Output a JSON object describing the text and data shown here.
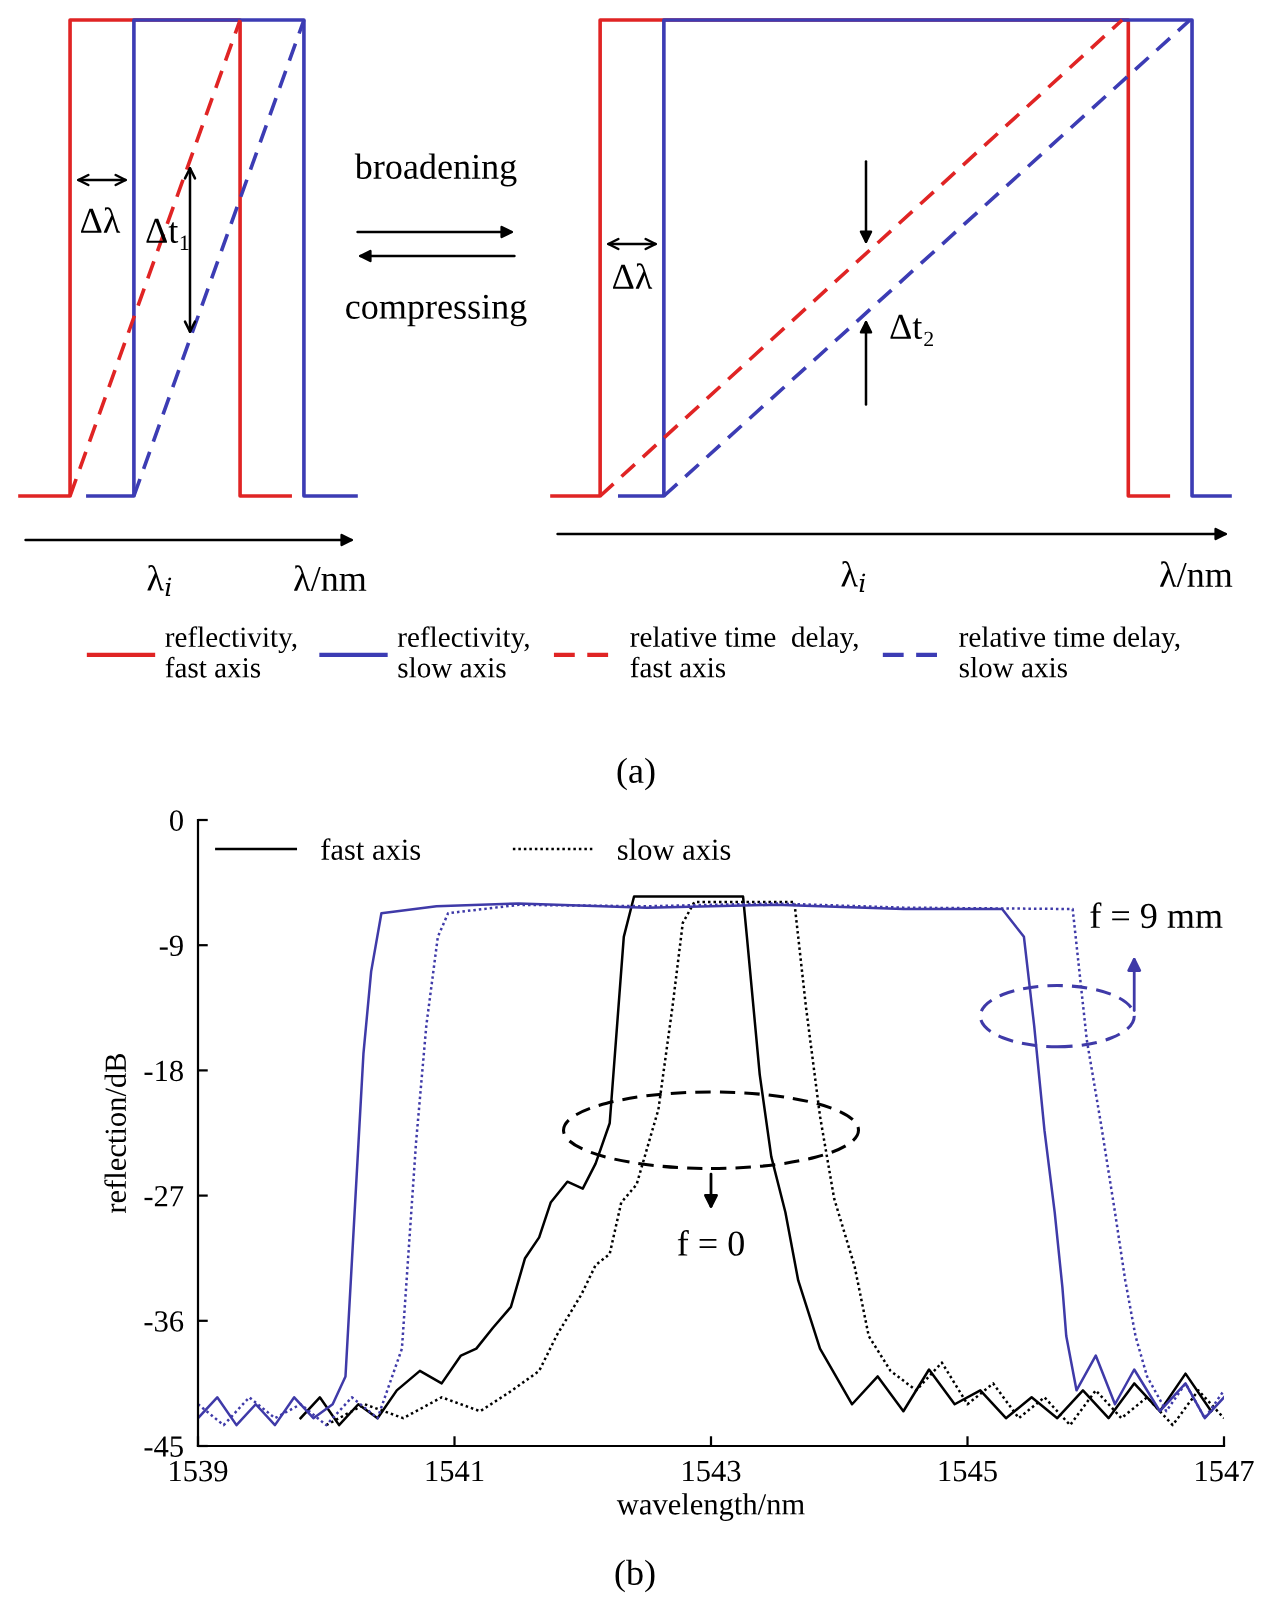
{
  "chart_data": [
    {
      "type": "other",
      "legend": "bottom",
      "series": [
        {
          "name": "reflectivity,\nfast axis",
          "color": "#e02424",
          "line_style": "solid"
        },
        {
          "name": "reflectivity,\nslow axis",
          "color": "#3c3cb4",
          "line_style": "solid"
        },
        {
          "name": "relative time  delay,\nfast axis",
          "color": "#e02424",
          "line_style": "dashed"
        },
        {
          "name": "relative time delay,\nslow axis",
          "color": "#3c3cb4",
          "line_style": "dashed"
        }
      ],
      "annotations": [
        "Δλ",
        "Δt₁",
        "λ$_{i}$",
        "λ/nm",
        "broadening",
        "compressing",
        "Δλ",
        "Δt₂",
        "λ$_{i}$",
        "λ/nm",
        "(a)"
      ]
    },
    {
      "type": "line",
      "xlabel": "wavelength/nm",
      "ylabel": "reflection/dB",
      "legend": "top left",
      "xlim": [
        1539,
        1547
      ],
      "xticks": [
        1539,
        1541,
        1543,
        1545,
        1547
      ],
      "ylim": [
        -45,
        0
      ],
      "yticks": [
        0,
        -9,
        -18,
        -27,
        -36,
        -45
      ],
      "series": [
        {
          "name": "fast axis",
          "color": "#000000",
          "line_style": "solid",
          "x": [
            1539.8,
            1539.95,
            1540.1,
            1540.25,
            1540.4,
            1540.55,
            1540.73,
            1540.9,
            1541.05,
            1541.17,
            1541.3,
            1541.44,
            1541.55,
            1541.66,
            1541.75,
            1541.88,
            1542.0,
            1542.1,
            1542.21,
            1542.32,
            1542.4,
            1543.25,
            1543.28,
            1543.38,
            1543.47,
            1543.58,
            1543.68,
            1543.85,
            1543.95,
            1544.1,
            1544.3,
            1544.5,
            1544.7,
            1544.9,
            1545.1,
            1545.3,
            1545.5,
            1545.7,
            1545.9,
            1546.1,
            1546.3,
            1546.5,
            1546.7,
            1546.9
          ],
          "values": [
            -43,
            -41.5,
            -43.5,
            -42,
            -43,
            -41,
            -39.6,
            -40.5,
            -38.5,
            -38,
            -36.5,
            -35,
            -31.5,
            -30,
            -27.5,
            -26,
            -26.5,
            -24.7,
            -21.8,
            -8.4,
            -5.5,
            -5.5,
            -8.4,
            -18.3,
            -24.2,
            -28.2,
            -33.1,
            -38,
            -39.6,
            -42,
            -40,
            -42.5,
            -39.5,
            -42,
            -41,
            -43,
            -41.5,
            -43,
            -41,
            -43,
            -40.5,
            -42.5,
            -39.8,
            -42.5
          ]
        },
        {
          "name": "slow axis",
          "color": "#000000",
          "line_style": "dotted",
          "x": [
            1540.0,
            1540.3,
            1540.6,
            1540.9,
            1541.2,
            1541.45,
            1541.66,
            1541.8,
            1541.99,
            1542.1,
            1542.21,
            1542.3,
            1542.42,
            1542.59,
            1542.7,
            1542.78,
            1542.87,
            1543.65,
            1543.74,
            1543.85,
            1543.96,
            1544.12,
            1544.23,
            1544.4,
            1544.6,
            1544.8,
            1545.0,
            1545.2,
            1545.4,
            1545.6,
            1545.8,
            1546.0,
            1546.2,
            1546.4,
            1546.6,
            1546.8,
            1547.0
          ],
          "values": [
            -43.5,
            -42,
            -43,
            -41.5,
            -42.5,
            -41,
            -39.6,
            -37,
            -34.1,
            -32,
            -31.2,
            -27.5,
            -26.2,
            -20.8,
            -13.4,
            -7.4,
            -5.9,
            -5.9,
            -13.4,
            -21.3,
            -27.2,
            -32.1,
            -37.1,
            -39.6,
            -41,
            -39,
            -42,
            -40.5,
            -43,
            -41.5,
            -43.5,
            -41,
            -43,
            -41.5,
            -43.5,
            -41,
            -43
          ]
        },
        {
          "color": "#3f3aa8",
          "line_style": "solid",
          "x": [
            1539.0,
            1539.15,
            1539.3,
            1539.45,
            1539.6,
            1539.75,
            1539.9,
            1540.05,
            1540.15,
            1540.29,
            1540.35,
            1540.43,
            1540.86,
            1541.5,
            1542.5,
            1543.5,
            1544.5,
            1545.27,
            1545.44,
            1545.52,
            1545.6,
            1545.68,
            1545.74,
            1545.77,
            1545.85,
            1546.0,
            1546.15,
            1546.3,
            1546.5,
            1546.7,
            1546.85,
            1547.0
          ],
          "values": [
            -43,
            -41.5,
            -43.5,
            -42,
            -43.5,
            -41.5,
            -43,
            -42,
            -40,
            -16.8,
            -10.9,
            -6.7,
            -6.2,
            -6.0,
            -6.3,
            -6.1,
            -6.4,
            -6.4,
            -8.4,
            -14.8,
            -22.3,
            -28.2,
            -33.6,
            -37.1,
            -41,
            -38.5,
            -42,
            -39.5,
            -42.5,
            -40.5,
            -43,
            -41.5
          ]
        },
        {
          "color": "#3f3aa8",
          "line_style": "dotted",
          "x": [
            1539.0,
            1539.2,
            1539.4,
            1539.6,
            1539.8,
            1540.0,
            1540.2,
            1540.4,
            1540.59,
            1540.7,
            1540.78,
            1540.87,
            1540.95,
            1541.5,
            1542.5,
            1543.5,
            1544.5,
            1545.82,
            1545.93,
            1546.04,
            1546.15,
            1546.23,
            1546.31,
            1546.4,
            1546.55,
            1546.7,
            1546.85,
            1547.0
          ],
          "values": [
            -42,
            -43.5,
            -41.5,
            -43,
            -42,
            -43.5,
            -41.5,
            -43,
            -38,
            -23.2,
            -14.8,
            -8.4,
            -6.7,
            -6.1,
            -6.2,
            -6.0,
            -6.3,
            -6.4,
            -15.8,
            -21.8,
            -28.2,
            -33.1,
            -37.1,
            -40,
            -42.5,
            -40.5,
            -43,
            -41
          ]
        }
      ],
      "annotations": [
        "f = 0",
        "f = 9 mm",
        "(b)"
      ]
    }
  ]
}
